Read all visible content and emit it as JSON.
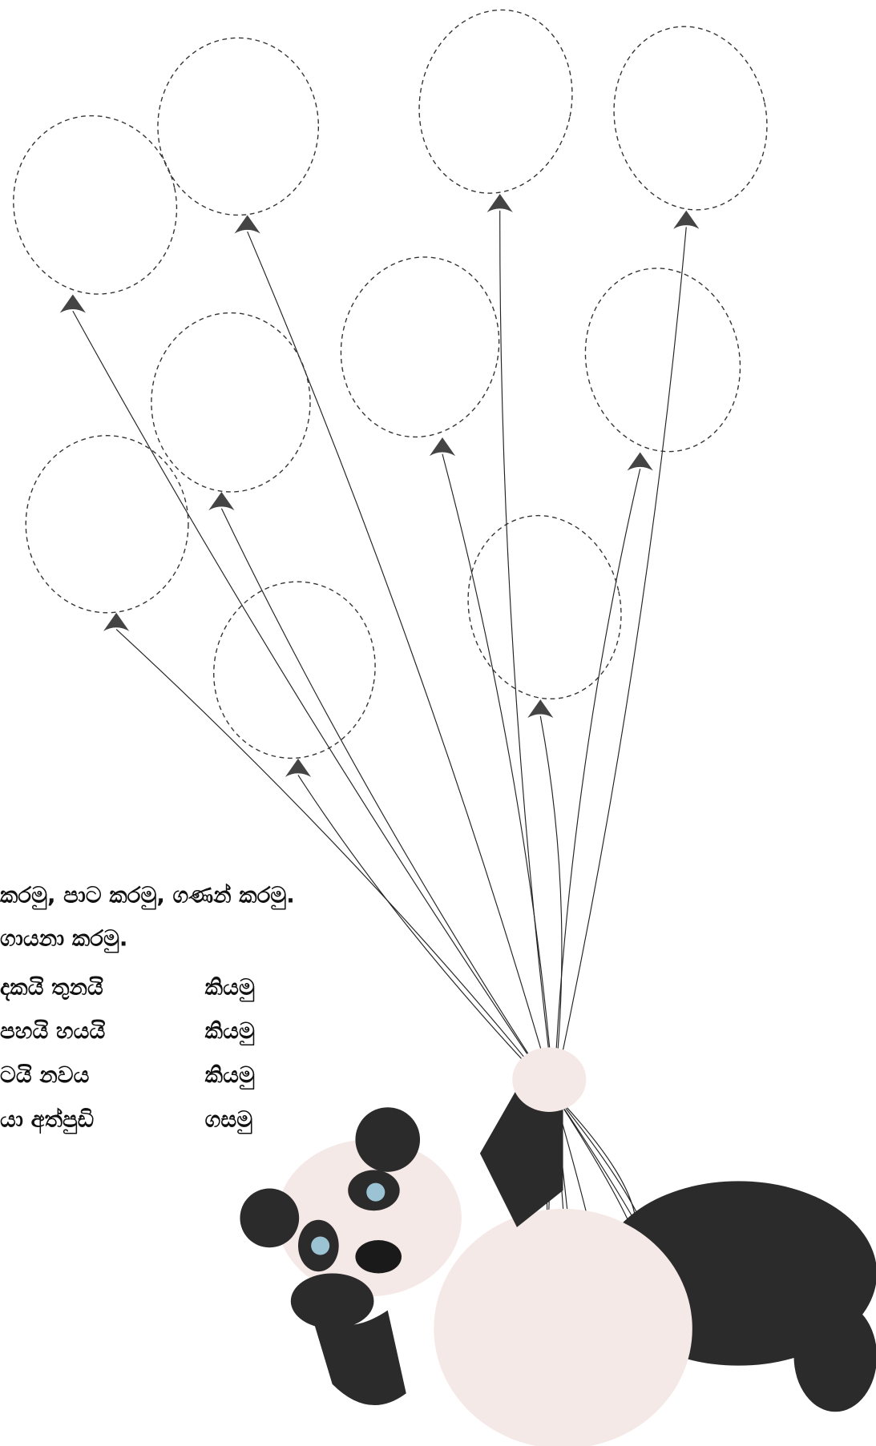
{
  "instructions": [
    "කරමු, පාට කරමු, ගණන් කරමු.",
    "ගායනා කරමු."
  ],
  "rows": [
    {
      "words": "දකයි තුනයි",
      "action": "කියමු"
    },
    {
      "words": "පහයි හයයි",
      "action": "කියමු"
    },
    {
      "words": "ටයි නවය",
      "action": "කියමු"
    },
    {
      "words": "යා අත්පුඩි",
      "action": "ගසමු"
    }
  ]
}
